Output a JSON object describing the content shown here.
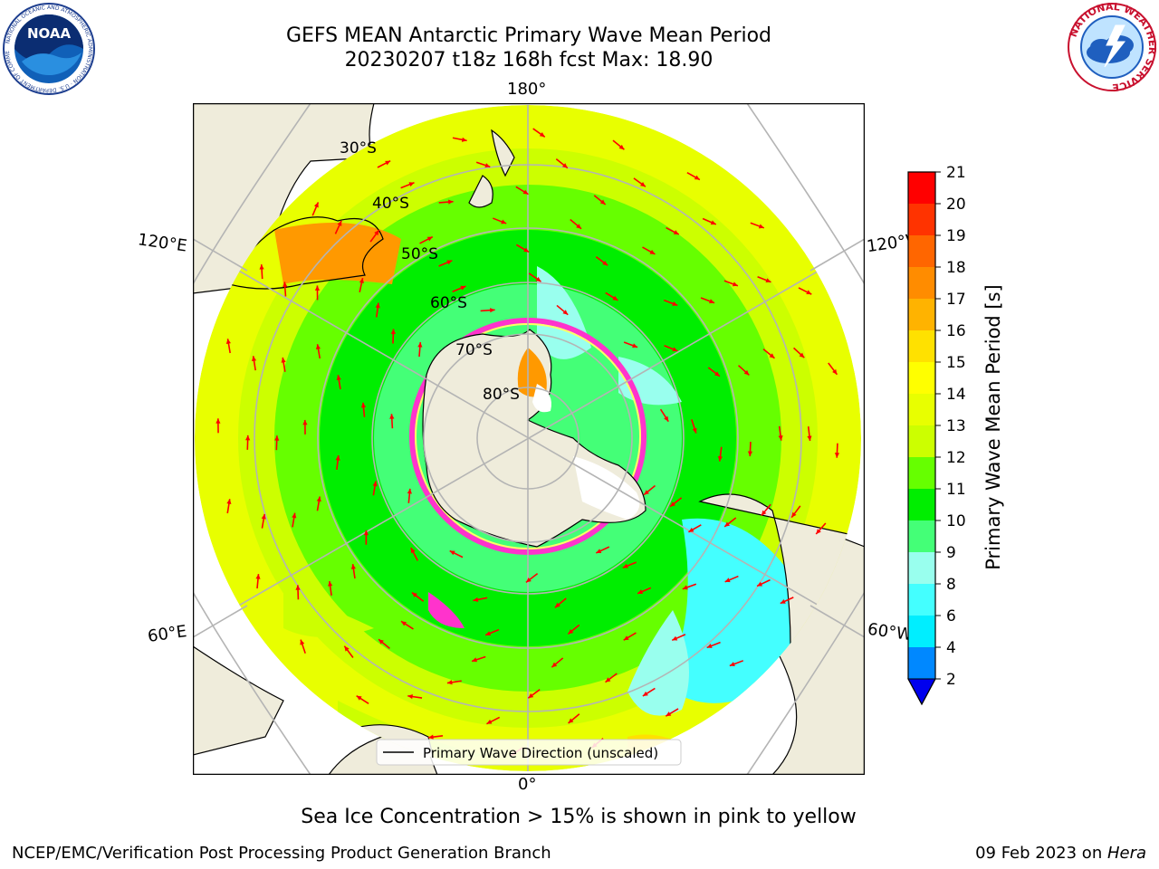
{
  "header": {
    "title_line1": "GEFS MEAN Antarctic Primary Wave Mean Period",
    "title_line2": "20230207 t18z 168h fcst   Max: 18.90"
  },
  "logos": {
    "left": {
      "icon": "noaa-logo-icon",
      "text": "NOAA",
      "ring_text": "NATIONAL OCEANIC AND ATMOSPHERIC ADMINISTRATION · U.S. DEPARTMENT OF COMMERCE"
    },
    "right": {
      "icon": "nws-logo-icon",
      "ring_text": "NATIONAL WEATHER SERVICE"
    }
  },
  "map": {
    "projection": "south-polar-stereographic",
    "longitude_labels": {
      "top": "180°",
      "bottom": "0°",
      "left_upper": "120°E",
      "left_lower": "60°E",
      "right_upper": "120°W",
      "right_lower": "60°W"
    },
    "latitude_labels": [
      "30°S",
      "40°S",
      "50°S",
      "60°S",
      "70°S",
      "80°S"
    ],
    "legend": "Primary Wave Direction (unscaled)",
    "colors": {
      "land": "#efecdb",
      "coast": "#000000",
      "grid": "#b4b4b4",
      "arrow": "#ff0000",
      "ice": "#ff33cc"
    }
  },
  "colorbar": {
    "label": "Primary Wave Mean Period [s]",
    "ticks": [
      "21",
      "20",
      "19",
      "18",
      "17",
      "16",
      "15",
      "14",
      "13",
      "12",
      "11",
      "10",
      "9",
      "8",
      "6",
      "4",
      "2"
    ],
    "colors": [
      "#ff0000",
      "#ff3300",
      "#ff6600",
      "#ff8c00",
      "#ffb300",
      "#ffe100",
      "#ffff00",
      "#e8ff00",
      "#ccff00",
      "#66ff00",
      "#00ee00",
      "#44ff77",
      "#99ffee",
      "#44ffff",
      "#00eeff",
      "#0088ff"
    ],
    "under_color": "#0000ee"
  },
  "notes": {
    "sea_ice": "Sea Ice Concentration > 15% is shown in pink to yellow"
  },
  "footer": {
    "left": "NCEP/EMC/Verification Post Processing Product Generation Branch",
    "date": "09 Feb 2023 on ",
    "host": "Hera"
  }
}
